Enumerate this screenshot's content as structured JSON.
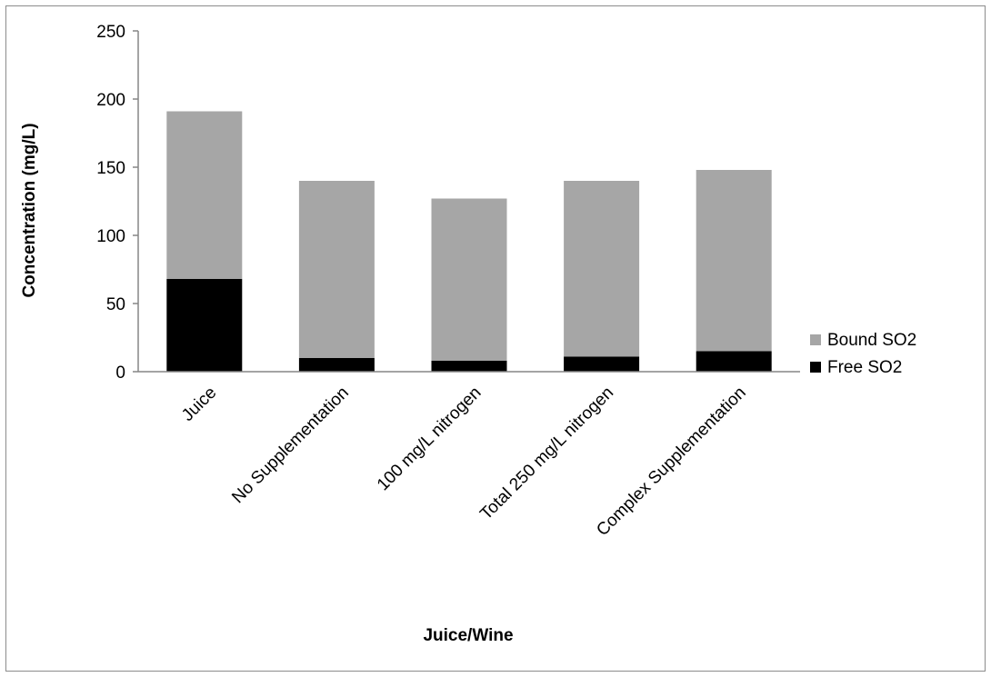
{
  "chart_data": {
    "type": "bar",
    "stacked": true,
    "title": "",
    "xlabel": "Juice/Wine",
    "ylabel": "Concentration (mg/L)",
    "ylim": [
      0,
      250
    ],
    "yticks": [
      0,
      50,
      100,
      150,
      200,
      250
    ],
    "grid": false,
    "legend_position": "right",
    "categories": [
      "Juice",
      "No Supplementation",
      "100 mg/L nitrogen",
      "Total 250 mg/L nitrogen",
      "Complex Supplementation"
    ],
    "series": [
      {
        "name": "Free SO2",
        "color": "#000000",
        "values": [
          68,
          10,
          8,
          11,
          15
        ]
      },
      {
        "name": "Bound SO2",
        "color": "#a6a6a6",
        "values": [
          123,
          130,
          119,
          129,
          133
        ]
      }
    ],
    "legend_order": [
      "Bound SO2",
      "Free SO2"
    ]
  }
}
